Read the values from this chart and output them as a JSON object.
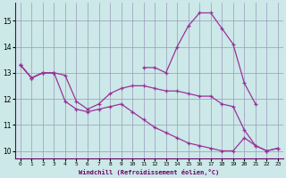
{
  "background_color": "#cce8e8",
  "grid_color": "#9999bb",
  "line_color": "#993399",
  "marker": "+",
  "xlabel": "Windchill (Refroidissement éolien,°C)",
  "hours": [
    0,
    1,
    2,
    3,
    4,
    5,
    6,
    7,
    8,
    9,
    10,
    11,
    12,
    13,
    14,
    15,
    16,
    17,
    18,
    19,
    20,
    21,
    22,
    23
  ],
  "line1": [
    13.3,
    12.8,
    13.0,
    13.0,
    null,
    null,
    null,
    null,
    null,
    null,
    null,
    13.2,
    13.2,
    13.0,
    14.0,
    14.8,
    15.3,
    15.3,
    14.7,
    14.1,
    12.6,
    11.8,
    null,
    null
  ],
  "line2": [
    13.3,
    12.8,
    13.0,
    13.0,
    12.9,
    11.9,
    11.6,
    11.8,
    12.2,
    12.4,
    12.5,
    12.5,
    12.4,
    12.3,
    12.3,
    12.2,
    12.1,
    12.1,
    11.8,
    11.7,
    10.8,
    10.2,
    10.0,
    10.1
  ],
  "line3": [
    13.3,
    12.8,
    13.0,
    13.0,
    11.9,
    11.6,
    11.5,
    11.6,
    11.7,
    11.8,
    11.5,
    11.2,
    10.9,
    10.7,
    10.5,
    10.3,
    10.2,
    10.1,
    10.0,
    10.0,
    10.5,
    10.2,
    10.0,
    10.1
  ],
  "ylim": [
    9.7,
    15.7
  ],
  "yticks": [
    10,
    11,
    12,
    13,
    14,
    15
  ],
  "xlim": [
    -0.5,
    23.5
  ]
}
